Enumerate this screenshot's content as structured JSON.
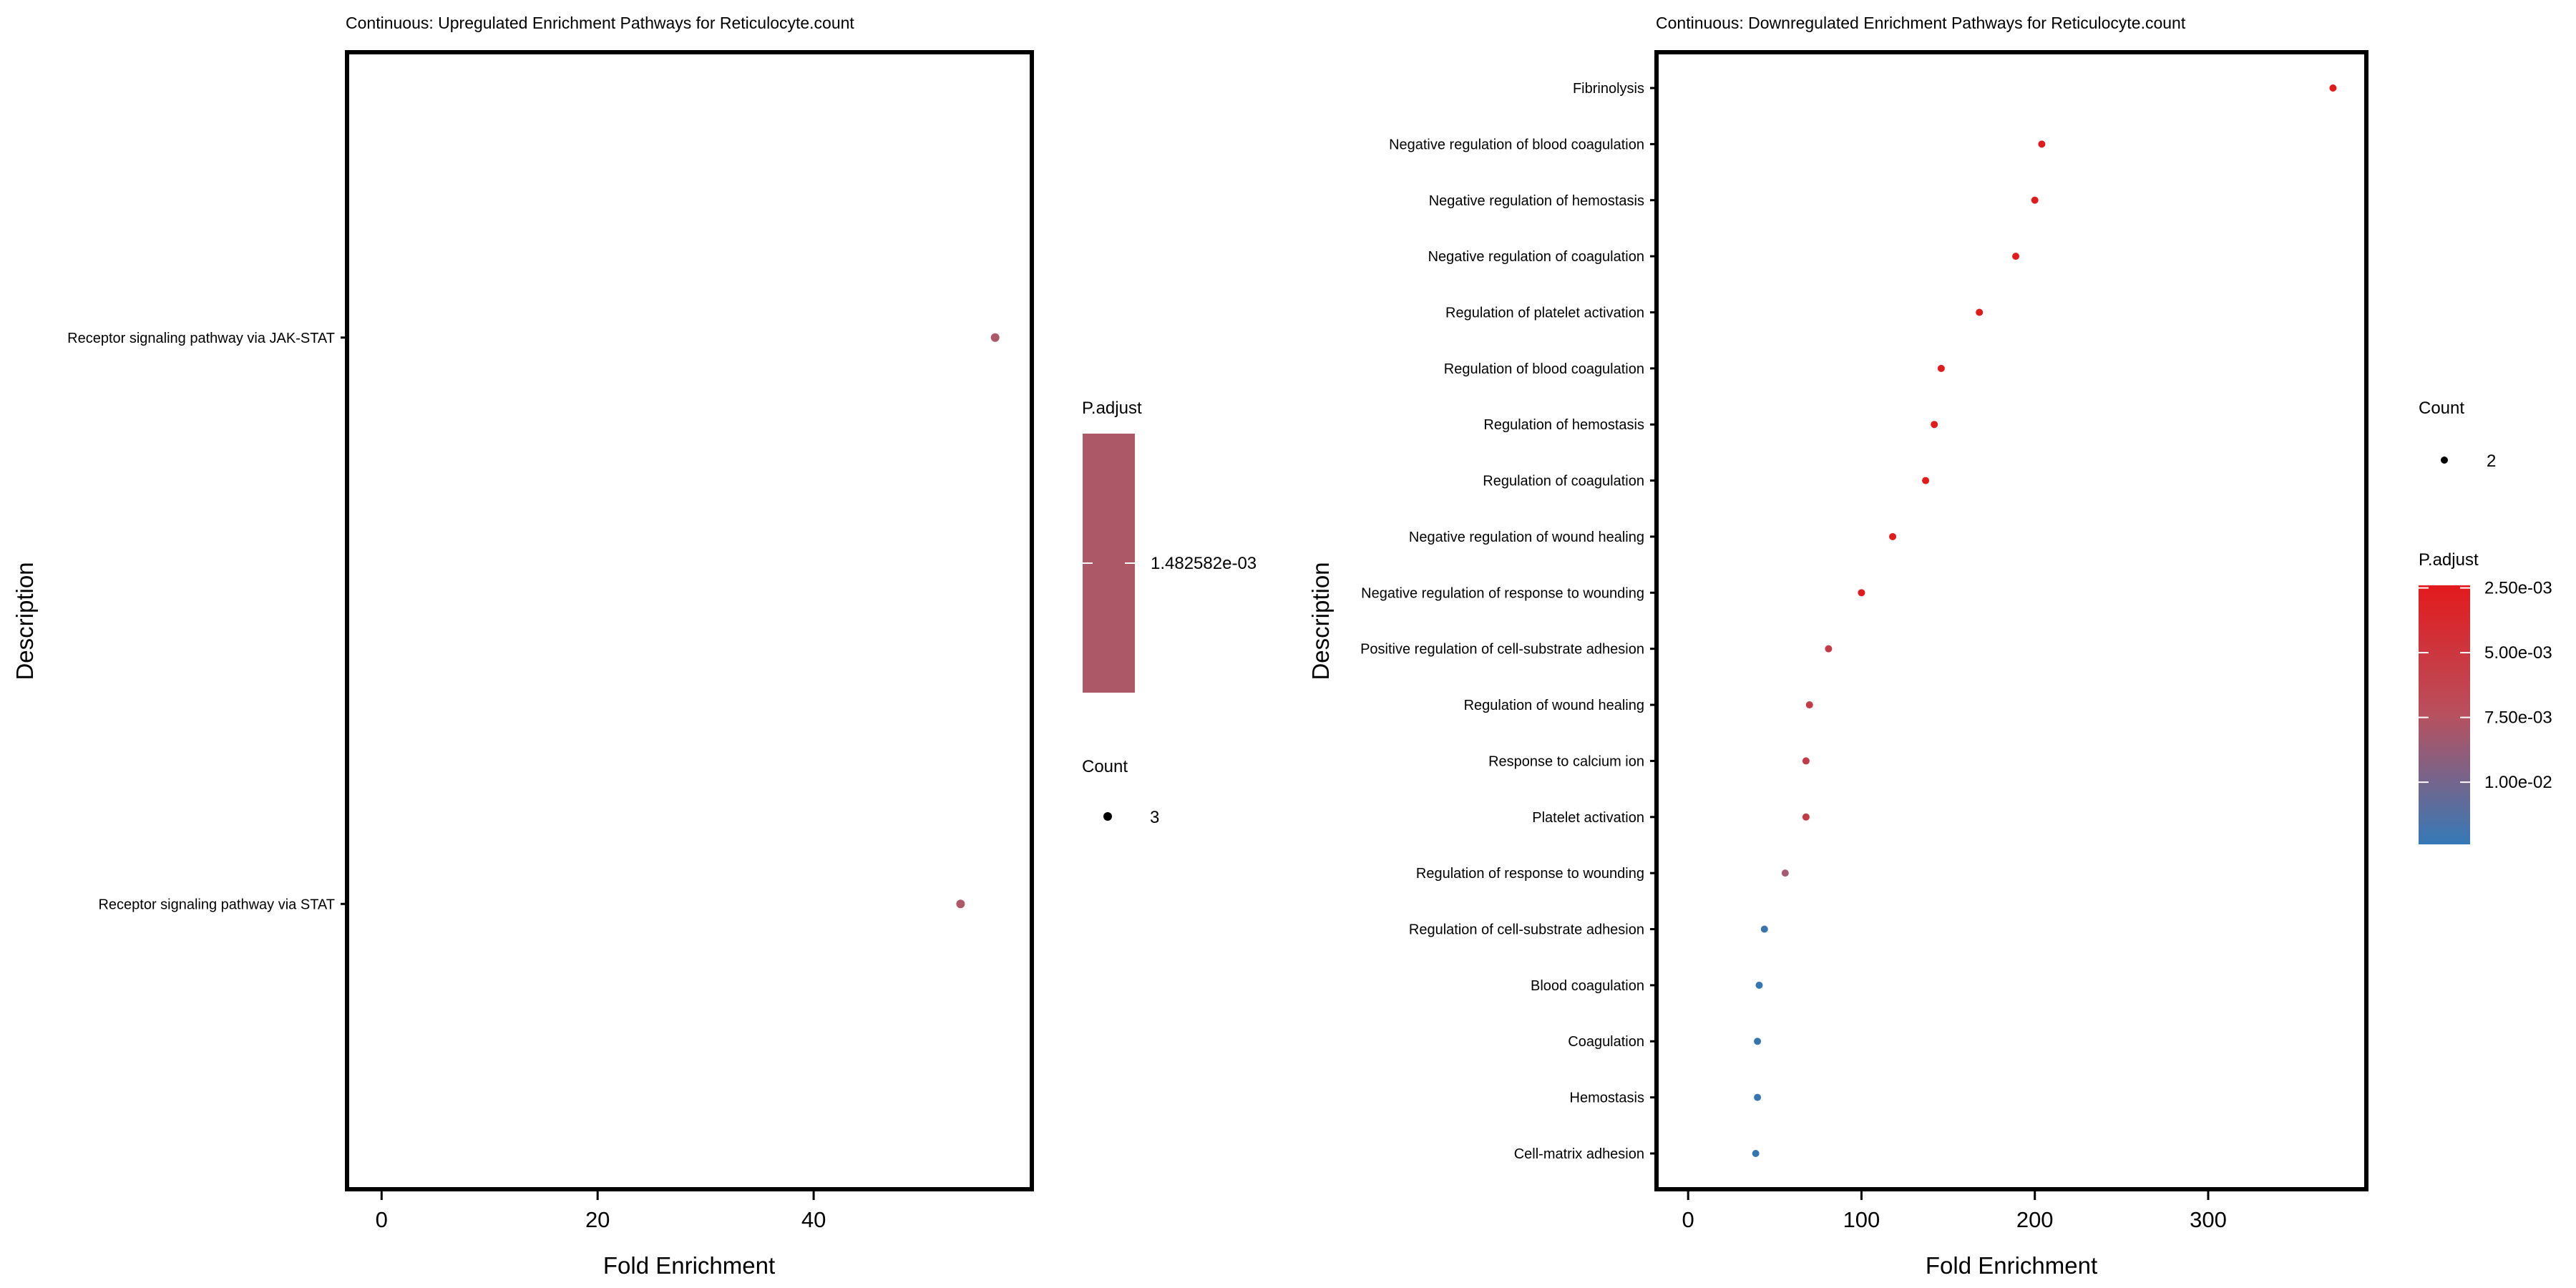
{
  "chart_data": [
    {
      "type": "scatter",
      "title": "Continuous: Upregulated Enrichment Pathways for Reticulocyte.count",
      "xlabel": "Fold Enrichment",
      "ylabel": "Description",
      "xlim": [
        -3,
        60
      ],
      "xticks": [
        0,
        20,
        40
      ],
      "categories": [
        "Receptor signaling pathway via JAK-STAT",
        "Receptor signaling pathway via STAT"
      ],
      "points": [
        {
          "label": "Receptor signaling pathway via JAK-STAT",
          "x": 56.8,
          "p_adjust": 0.001482582,
          "count": 3,
          "color": "#ad5867"
        },
        {
          "label": "Receptor signaling pathway via STAT",
          "x": 53.6,
          "p_adjust": 0.001482582,
          "count": 3,
          "color": "#ad5867"
        }
      ],
      "legend": {
        "padjust_title": "P.adjust",
        "padjust_label": "1.482582e-03",
        "padjust_color": "#ad5867",
        "count_title": "Count",
        "count_label": "3"
      }
    },
    {
      "type": "scatter",
      "title": "Continuous: Downregulated Enrichment Pathways for Reticulocyte.count",
      "xlabel": "Fold Enrichment",
      "ylabel": "Description",
      "xlim": [
        -17,
        390
      ],
      "xticks": [
        0,
        100,
        200,
        300
      ],
      "categories": [
        "Fibrinolysis",
        "Negative regulation of blood coagulation",
        "Negative regulation of hemostasis",
        "Negative regulation of coagulation",
        "Regulation of platelet activation",
        "Regulation of blood coagulation",
        "Regulation of hemostasis",
        "Regulation of coagulation",
        "Negative regulation of wound healing",
        "Negative regulation of response to wounding",
        "Positive regulation of cell-substrate adhesion",
        "Regulation of wound healing",
        "Response to calcium ion",
        "Platelet activation",
        "Regulation of response to wounding",
        "Regulation of cell-substrate adhesion",
        "Blood coagulation",
        "Coagulation",
        "Hemostasis",
        "Cell-matrix adhesion"
      ],
      "points": [
        {
          "label": "Fibrinolysis",
          "x": 372,
          "count": 2,
          "color": "#e31a1c"
        },
        {
          "label": "Negative regulation of blood coagulation",
          "x": 204,
          "count": 2,
          "color": "#e31a1c"
        },
        {
          "label": "Negative regulation of hemostasis",
          "x": 200,
          "count": 2,
          "color": "#e31a1c"
        },
        {
          "label": "Negative regulation of coagulation",
          "x": 189,
          "count": 2,
          "color": "#e31a1c"
        },
        {
          "label": "Regulation of platelet activation",
          "x": 168,
          "count": 2,
          "color": "#e31a1c"
        },
        {
          "label": "Regulation of blood coagulation",
          "x": 146,
          "count": 2,
          "color": "#e31a1c"
        },
        {
          "label": "Regulation of hemostasis",
          "x": 142,
          "count": 2,
          "color": "#e31a1c"
        },
        {
          "label": "Regulation of coagulation",
          "x": 137,
          "count": 2,
          "color": "#e31a1c"
        },
        {
          "label": "Negative regulation of wound healing",
          "x": 118,
          "count": 2,
          "color": "#e31a1c"
        },
        {
          "label": "Negative regulation of response to wounding",
          "x": 100,
          "count": 2,
          "color": "#e31a1c"
        },
        {
          "label": "Positive regulation of cell-substrate adhesion",
          "x": 81,
          "count": 2,
          "color": "#c43a46"
        },
        {
          "label": "Regulation of wound healing",
          "x": 70,
          "count": 2,
          "color": "#c43a46"
        },
        {
          "label": "Response to calcium ion",
          "x": 68,
          "count": 2,
          "color": "#c43a46"
        },
        {
          "label": "Platelet activation",
          "x": 68,
          "count": 2,
          "color": "#c43a46"
        },
        {
          "label": "Regulation of response to wounding",
          "x": 56,
          "count": 2,
          "color": "#a55a72"
        },
        {
          "label": "Regulation of cell-substrate adhesion",
          "x": 44,
          "count": 2,
          "color": "#3a74ad"
        },
        {
          "label": "Blood coagulation",
          "x": 41,
          "count": 2,
          "color": "#3676b0"
        },
        {
          "label": "Coagulation",
          "x": 40,
          "count": 2,
          "color": "#3676b0"
        },
        {
          "label": "Hemostasis",
          "x": 40,
          "count": 2,
          "color": "#3676b0"
        },
        {
          "label": "Cell-matrix adhesion",
          "x": 39,
          "count": 2,
          "color": "#3676b0"
        }
      ],
      "legend": {
        "count_title": "Count",
        "count_label": "2",
        "padjust_title": "P.adjust",
        "padjust_labels": [
          "2.50e-03",
          "5.00e-03",
          "7.50e-03",
          "1.00e-02"
        ],
        "gradient_top_color": "#e31a1c",
        "gradient_bottom_color": "#3579b7"
      }
    }
  ]
}
